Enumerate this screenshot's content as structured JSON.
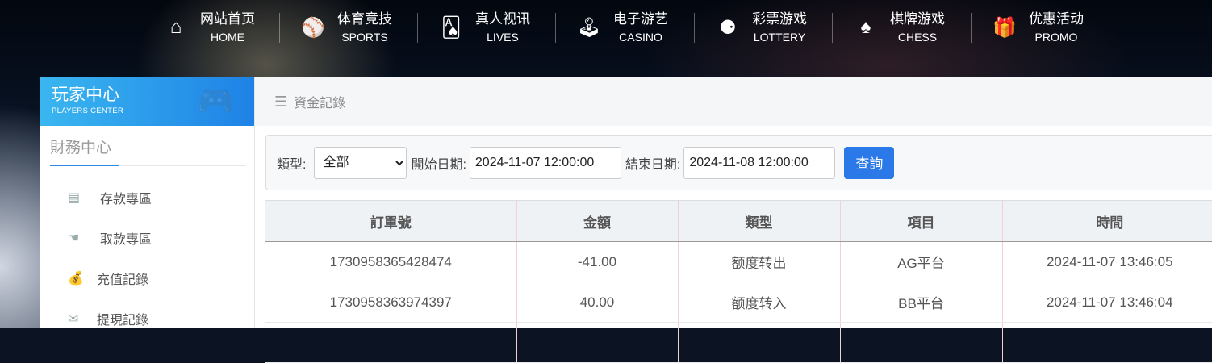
{
  "nav": [
    {
      "cn": "网站首页",
      "en": "HOME",
      "icon": "home-icon",
      "glyph": "⌂"
    },
    {
      "cn": "体育竞技",
      "en": "SPORTS",
      "icon": "ball-icon",
      "glyph": "⚾"
    },
    {
      "cn": "真人视讯",
      "en": "LIVES",
      "icon": "cards-icon",
      "glyph": "🂡"
    },
    {
      "cn": "电子游艺",
      "en": "CASINO",
      "icon": "joystick-icon",
      "glyph": "🕹"
    },
    {
      "cn": "彩票游戏",
      "en": "LOTTERY",
      "icon": "lottery-balls-icon",
      "glyph": "⚈"
    },
    {
      "cn": "棋牌游戏",
      "en": "CHESS",
      "icon": "spade-icon",
      "glyph": "♠"
    },
    {
      "cn": "优惠活动",
      "en": "PROMO",
      "icon": "gift-icon",
      "glyph": "🎁"
    }
  ],
  "sidebar": {
    "title": "玩家中心",
    "subtitle": "PLAYERS CENTER",
    "section": "財務中心",
    "items": [
      {
        "label": "存款專區",
        "glyph": "▤"
      },
      {
        "label": "取款專區",
        "glyph": "☚"
      },
      {
        "label": "充值記錄",
        "glyph": "💰"
      },
      {
        "label": "提現記錄",
        "glyph": "✉"
      }
    ]
  },
  "breadcrumb": {
    "title": "資金記錄"
  },
  "filter": {
    "type_label": "類型:",
    "type_value": "全部",
    "start_label": "開始日期:",
    "start_value": "2024-11-07 12:00:00",
    "end_label": "結束日期:",
    "end_value": "2024-11-08 12:00:00",
    "query": "查詢"
  },
  "table": {
    "headers": [
      "訂單號",
      "金額",
      "類型",
      "項目",
      "時間"
    ],
    "rows": [
      [
        "1730958365428474",
        "-41.00",
        "额度转出",
        "AG平台",
        "2024-11-07 13:46:05"
      ],
      [
        "1730958363974397",
        "40.00",
        "额度转入",
        "BB平台",
        "2024-11-07 13:46:04"
      ]
    ]
  }
}
